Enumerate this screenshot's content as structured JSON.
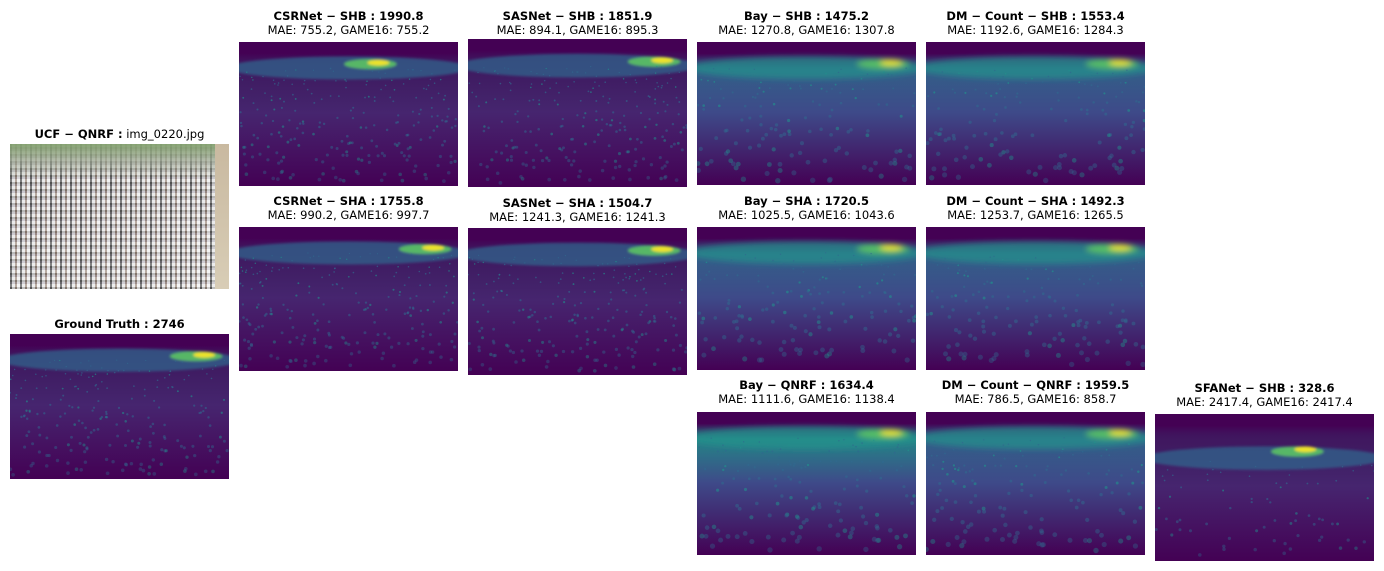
{
  "input": {
    "title_bold": "UCF − QNRF :",
    "title_rest": " img_0220.jpg"
  },
  "ground_truth": {
    "title": "Ground Truth : 2746"
  },
  "panels": [
    {
      "title": "CSRNet − SHB : 1990.8",
      "sub": "MAE: 755.2, GAME16: 755.2"
    },
    {
      "title": "CSRNet − SHA : 1755.8",
      "sub": "MAE: 990.2, GAME16: 997.7"
    },
    {
      "title": "SASNet − SHB : 1851.9",
      "sub": "MAE: 894.1, GAME16: 895.3"
    },
    {
      "title": "SASNet − SHA : 1504.7",
      "sub": "MAE: 1241.3, GAME16: 1241.3"
    },
    {
      "title": "Bay − SHB : 1475.2",
      "sub": "MAE: 1270.8, GAME16: 1307.8"
    },
    {
      "title": "Bay − SHA : 1720.5",
      "sub": "MAE: 1025.5, GAME16: 1043.6"
    },
    {
      "title": "Bay − QNRF : 1634.4",
      "sub": "MAE: 1111.6, GAME16: 1138.4"
    },
    {
      "title": "DM − Count − SHB : 1553.4",
      "sub": "MAE: 1192.6, GAME16: 1284.3"
    },
    {
      "title": "DM − Count − SHA : 1492.3",
      "sub": "MAE: 1253.7, GAME16: 1265.5"
    },
    {
      "title": "DM − Count − QNRF : 1959.5",
      "sub": "MAE: 786.5, GAME16: 858.7"
    },
    {
      "title": "SFANet − SHB : 328.6",
      "sub": "MAE: 2417.4, GAME16: 2417.4"
    }
  ],
  "colors": {
    "viridis_dark": "#440154",
    "viridis_blue": "#31688e",
    "viridis_teal": "#21918c",
    "viridis_green": "#5ec962",
    "viridis_yellow": "#fde725"
  }
}
